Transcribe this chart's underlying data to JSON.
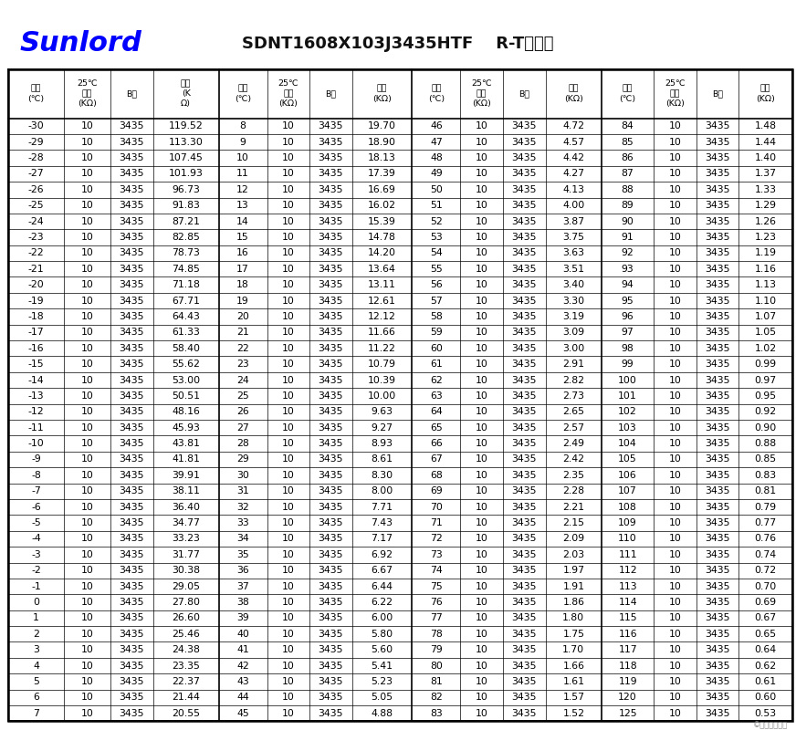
{
  "title": "SDNT1608X103J3435HTF    R-T对照表",
  "sunlord_text": "Sunlord",
  "sunlord_color": "#0000FF",
  "bg_color": "#FFFFFF",
  "col_headers": [
    "温度\n(℃)",
    "25℃\n阻値\n(KΩ)",
    "B値",
    "阻値\n(K\nΩ)",
    "温度\n(℃)",
    "25℃\n阻値\n(KΩ)",
    "B値",
    "阻値\n(KΩ)",
    "温度\n(℃)",
    "25℃\n阻値\n(KΩ)",
    "B値",
    "阻値\n(KΩ)",
    "温度\n(℃)",
    "25℃\n阻値\n(KΩ)",
    "B値",
    "阻値\n(KΩ)"
  ],
  "footer": "©恒是那是但是",
  "data": [
    [
      -30,
      10,
      3435,
      "119.52",
      8,
      10,
      3435,
      "19.70",
      46,
      10,
      3435,
      "4.72",
      84,
      10,
      3435,
      "1.48"
    ],
    [
      -29,
      10,
      3435,
      "113.30",
      9,
      10,
      3435,
      "18.90",
      47,
      10,
      3435,
      "4.57",
      85,
      10,
      3435,
      "1.44"
    ],
    [
      -28,
      10,
      3435,
      "107.45",
      10,
      10,
      3435,
      "18.13",
      48,
      10,
      3435,
      "4.42",
      86,
      10,
      3435,
      "1.40"
    ],
    [
      -27,
      10,
      3435,
      "101.93",
      11,
      10,
      3435,
      "17.39",
      49,
      10,
      3435,
      "4.27",
      87,
      10,
      3435,
      "1.37"
    ],
    [
      -26,
      10,
      3435,
      "96.73",
      12,
      10,
      3435,
      "16.69",
      50,
      10,
      3435,
      "4.13",
      88,
      10,
      3435,
      "1.33"
    ],
    [
      -25,
      10,
      3435,
      "91.83",
      13,
      10,
      3435,
      "16.02",
      51,
      10,
      3435,
      "4.00",
      89,
      10,
      3435,
      "1.29"
    ],
    [
      -24,
      10,
      3435,
      "87.21",
      14,
      10,
      3435,
      "15.39",
      52,
      10,
      3435,
      "3.87",
      90,
      10,
      3435,
      "1.26"
    ],
    [
      -23,
      10,
      3435,
      "82.85",
      15,
      10,
      3435,
      "14.78",
      53,
      10,
      3435,
      "3.75",
      91,
      10,
      3435,
      "1.23"
    ],
    [
      -22,
      10,
      3435,
      "78.73",
      16,
      10,
      3435,
      "14.20",
      54,
      10,
      3435,
      "3.63",
      92,
      10,
      3435,
      "1.19"
    ],
    [
      -21,
      10,
      3435,
      "74.85",
      17,
      10,
      3435,
      "13.64",
      55,
      10,
      3435,
      "3.51",
      93,
      10,
      3435,
      "1.16"
    ],
    [
      -20,
      10,
      3435,
      "71.18",
      18,
      10,
      3435,
      "13.11",
      56,
      10,
      3435,
      "3.40",
      94,
      10,
      3435,
      "1.13"
    ],
    [
      -19,
      10,
      3435,
      "67.71",
      19,
      10,
      3435,
      "12.61",
      57,
      10,
      3435,
      "3.30",
      95,
      10,
      3435,
      "1.10"
    ],
    [
      -18,
      10,
      3435,
      "64.43",
      20,
      10,
      3435,
      "12.12",
      58,
      10,
      3435,
      "3.19",
      96,
      10,
      3435,
      "1.07"
    ],
    [
      -17,
      10,
      3435,
      "61.33",
      21,
      10,
      3435,
      "11.66",
      59,
      10,
      3435,
      "3.09",
      97,
      10,
      3435,
      "1.05"
    ],
    [
      -16,
      10,
      3435,
      "58.40",
      22,
      10,
      3435,
      "11.22",
      60,
      10,
      3435,
      "3.00",
      98,
      10,
      3435,
      "1.02"
    ],
    [
      -15,
      10,
      3435,
      "55.62",
      23,
      10,
      3435,
      "10.79",
      61,
      10,
      3435,
      "2.91",
      99,
      10,
      3435,
      "0.99"
    ],
    [
      -14,
      10,
      3435,
      "53.00",
      24,
      10,
      3435,
      "10.39",
      62,
      10,
      3435,
      "2.82",
      100,
      10,
      3435,
      "0.97"
    ],
    [
      -13,
      10,
      3435,
      "50.51",
      25,
      10,
      3435,
      "10.00",
      63,
      10,
      3435,
      "2.73",
      101,
      10,
      3435,
      "0.95"
    ],
    [
      -12,
      10,
      3435,
      "48.16",
      26,
      10,
      3435,
      "9.63",
      64,
      10,
      3435,
      "2.65",
      102,
      10,
      3435,
      "0.92"
    ],
    [
      -11,
      10,
      3435,
      "45.93",
      27,
      10,
      3435,
      "9.27",
      65,
      10,
      3435,
      "2.57",
      103,
      10,
      3435,
      "0.90"
    ],
    [
      -10,
      10,
      3435,
      "43.81",
      28,
      10,
      3435,
      "8.93",
      66,
      10,
      3435,
      "2.49",
      104,
      10,
      3435,
      "0.88"
    ],
    [
      -9,
      10,
      3435,
      "41.81",
      29,
      10,
      3435,
      "8.61",
      67,
      10,
      3435,
      "2.42",
      105,
      10,
      3435,
      "0.85"
    ],
    [
      -8,
      10,
      3435,
      "39.91",
      30,
      10,
      3435,
      "8.30",
      68,
      10,
      3435,
      "2.35",
      106,
      10,
      3435,
      "0.83"
    ],
    [
      -7,
      10,
      3435,
      "38.11",
      31,
      10,
      3435,
      "8.00",
      69,
      10,
      3435,
      "2.28",
      107,
      10,
      3435,
      "0.81"
    ],
    [
      -6,
      10,
      3435,
      "36.40",
      32,
      10,
      3435,
      "7.71",
      70,
      10,
      3435,
      "2.21",
      108,
      10,
      3435,
      "0.79"
    ],
    [
      -5,
      10,
      3435,
      "34.77",
      33,
      10,
      3435,
      "7.43",
      71,
      10,
      3435,
      "2.15",
      109,
      10,
      3435,
      "0.77"
    ],
    [
      -4,
      10,
      3435,
      "33.23",
      34,
      10,
      3435,
      "7.17",
      72,
      10,
      3435,
      "2.09",
      110,
      10,
      3435,
      "0.76"
    ],
    [
      -3,
      10,
      3435,
      "31.77",
      35,
      10,
      3435,
      "6.92",
      73,
      10,
      3435,
      "2.03",
      111,
      10,
      3435,
      "0.74"
    ],
    [
      -2,
      10,
      3435,
      "30.38",
      36,
      10,
      3435,
      "6.67",
      74,
      10,
      3435,
      "1.97",
      112,
      10,
      3435,
      "0.72"
    ],
    [
      -1,
      10,
      3435,
      "29.05",
      37,
      10,
      3435,
      "6.44",
      75,
      10,
      3435,
      "1.91",
      113,
      10,
      3435,
      "0.70"
    ],
    [
      0,
      10,
      3435,
      "27.80",
      38,
      10,
      3435,
      "6.22",
      76,
      10,
      3435,
      "1.86",
      114,
      10,
      3435,
      "0.69"
    ],
    [
      1,
      10,
      3435,
      "26.60",
      39,
      10,
      3435,
      "6.00",
      77,
      10,
      3435,
      "1.80",
      115,
      10,
      3435,
      "0.67"
    ],
    [
      2,
      10,
      3435,
      "25.46",
      40,
      10,
      3435,
      "5.80",
      78,
      10,
      3435,
      "1.75",
      116,
      10,
      3435,
      "0.65"
    ],
    [
      3,
      10,
      3435,
      "24.38",
      41,
      10,
      3435,
      "5.60",
      79,
      10,
      3435,
      "1.70",
      117,
      10,
      3435,
      "0.64"
    ],
    [
      4,
      10,
      3435,
      "23.35",
      42,
      10,
      3435,
      "5.41",
      80,
      10,
      3435,
      "1.66",
      118,
      10,
      3435,
      "0.62"
    ],
    [
      5,
      10,
      3435,
      "22.37",
      43,
      10,
      3435,
      "5.23",
      81,
      10,
      3435,
      "1.61",
      119,
      10,
      3435,
      "0.61"
    ],
    [
      6,
      10,
      3435,
      "21.44",
      44,
      10,
      3435,
      "5.05",
      82,
      10,
      3435,
      "1.57",
      120,
      10,
      3435,
      "0.60"
    ],
    [
      7,
      10,
      3435,
      "20.55",
      45,
      10,
      3435,
      "4.88",
      83,
      10,
      3435,
      "1.52",
      125,
      10,
      3435,
      "0.53"
    ]
  ]
}
